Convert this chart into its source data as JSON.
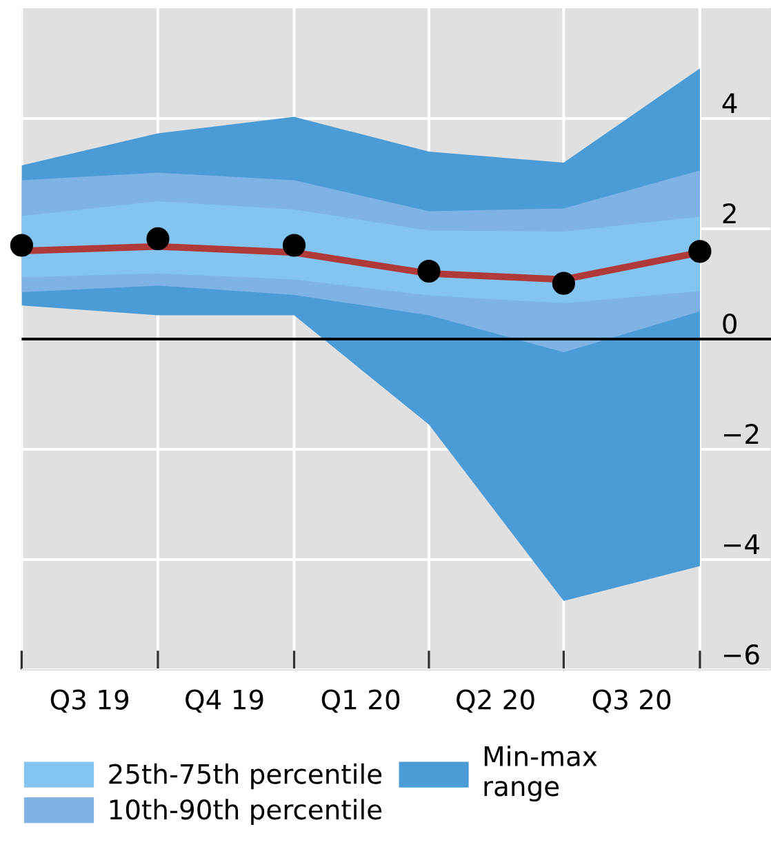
{
  "chart_data": {
    "type": "line",
    "x": [
      "2019-07-01",
      "2019-10-01",
      "2020-01-01",
      "2020-04-01",
      "2020-07-01",
      "2020-10-01"
    ],
    "xlim": [
      "2019-07-01",
      "2020-11-18"
    ],
    "xticks": [
      {
        "value": "2019-07-01",
        "label": null
      },
      {
        "value": "2019-08-16",
        "label": "Q3 19"
      },
      {
        "value": "2019-10-01",
        "label": null
      },
      {
        "value": "2019-11-15",
        "label": "Q4 19"
      },
      {
        "value": "2020-01-01",
        "label": null
      },
      {
        "value": "2020-02-15",
        "label": "Q1 20"
      },
      {
        "value": "2020-04-01",
        "label": null
      },
      {
        "value": "2020-05-16",
        "label": "Q2 20"
      },
      {
        "value": "2020-07-01",
        "label": null
      },
      {
        "value": "2020-08-16",
        "label": "Q3 20"
      },
      {
        "value": "2020-10-01",
        "label": null
      }
    ],
    "ylim": [
      -6,
      6
    ],
    "yticks": [
      {
        "value": -6,
        "label": "−6"
      },
      {
        "value": -4,
        "label": "−4"
      },
      {
        "value": -2,
        "label": "−2"
      },
      0,
      2,
      4
    ],
    "grid": true,
    "legend": "bottom",
    "series": [
      {
        "name": "Min-max range",
        "type": "area",
        "color": "#4a9bd6",
        "values": [
          null,
          null,
          null,
          null,
          null,
          null
        ],
        "lower": [
          0.61,
          0.43,
          0.43,
          -1.55,
          -4.75,
          -4.12
        ],
        "upper": [
          3.15,
          3.73,
          4.03,
          3.4,
          3.2,
          4.91
        ]
      },
      {
        "name": "10th-90th percentile",
        "type": "area",
        "color": "#7fb2e5",
        "values": [
          null,
          null,
          null,
          null,
          null,
          null
        ],
        "lower": [
          0.85,
          0.97,
          0.8,
          0.43,
          -0.24,
          0.5
        ],
        "upper": [
          2.88,
          3.02,
          2.88,
          2.32,
          2.37,
          3.06
        ]
      },
      {
        "name": "25th-75th percentile",
        "type": "area",
        "color": "#84c4f0",
        "values": [
          null,
          null,
          null,
          null,
          null,
          null
        ],
        "lower": [
          1.12,
          1.19,
          1.08,
          0.79,
          0.65,
          0.87
        ],
        "upper": [
          2.23,
          2.5,
          2.35,
          1.97,
          1.95,
          2.22
        ]
      },
      {
        "color": "#b03a3a",
        "values": [
          1.6,
          1.68,
          1.57,
          1.19,
          1.08,
          1.57
        ]
      },
      {
        "type": "scatter",
        "color": "#000000",
        "marker": "circle",
        "values": [
          1.7,
          1.82,
          1.7,
          1.23,
          1.01,
          1.59
        ]
      }
    ],
    "ref_lines": [
      {
        "axis": "y",
        "value": 0,
        "color": "#000000"
      }
    ]
  }
}
